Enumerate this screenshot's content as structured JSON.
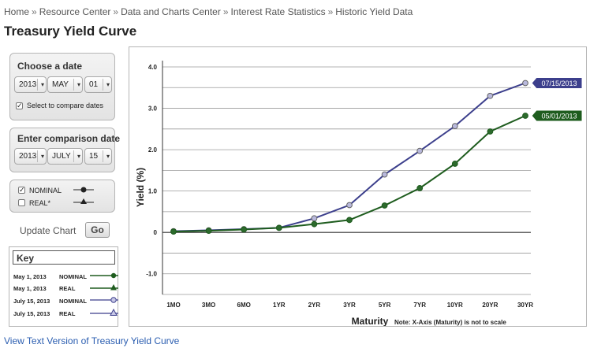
{
  "breadcrumb": {
    "items": [
      "Home",
      "Resource Center",
      "Data and Charts Center",
      "Interest Rate Statistics",
      "Historic Yield Data"
    ],
    "separator": "»"
  },
  "page_title": "Treasury Yield Curve",
  "choose_date": {
    "title": "Choose a date",
    "year": "2013",
    "month": "MAY",
    "day": "01",
    "compare_label": "Select to compare dates",
    "compare_checked": true
  },
  "comparison_date": {
    "title": "Enter comparison date",
    "year": "2013",
    "month": "JULY",
    "day": "15"
  },
  "series_toggle": {
    "nominal_label": "NOMINAL",
    "nominal_checked": true,
    "real_label": "REAL*",
    "real_checked": false
  },
  "update": {
    "label": "Update Chart",
    "go": "Go"
  },
  "key": {
    "title": "Key",
    "rows": [
      {
        "date": "May 1, 2013",
        "series": "NOMINAL",
        "marker": "circle-filled",
        "color": "#1e5c1e"
      },
      {
        "date": "May 1, 2013",
        "series": "REAL",
        "marker": "triangle-filled",
        "color": "#1e5c1e"
      },
      {
        "date": "July 15, 2013",
        "series": "NOMINAL",
        "marker": "circle-open",
        "color": "#3c3f8c"
      },
      {
        "date": "July 15, 2013",
        "series": "REAL",
        "marker": "triangle-open",
        "color": "#3c3f8c"
      }
    ]
  },
  "chart_data": {
    "type": "line",
    "categories": [
      "1MO",
      "3MO",
      "6MO",
      "1YR",
      "2YR",
      "3YR",
      "5YR",
      "7YR",
      "10YR",
      "20YR",
      "30YR"
    ],
    "series": [
      {
        "name": "07/15/2013",
        "color": "#3c3f8c",
        "fill": "#b8b8dc",
        "marker": "circle-open",
        "values": [
          0.03,
          0.05,
          0.08,
          0.11,
          0.34,
          0.66,
          1.4,
          1.97,
          2.57,
          3.3,
          3.61
        ]
      },
      {
        "name": "05/01/2013",
        "color": "#1e5c1e",
        "fill": "#2c6a2c",
        "marker": "circle-filled",
        "values": [
          0.02,
          0.04,
          0.07,
          0.11,
          0.2,
          0.3,
          0.65,
          1.07,
          1.66,
          2.44,
          2.82
        ]
      }
    ],
    "xlabel": "Maturity",
    "ylabel": "Yield (%)",
    "note": "Note: X-Axis (Maturity) is not to scale",
    "ylim": [
      -1.5,
      4.0
    ],
    "yticks": [
      "4.0",
      "3.0",
      "2.0",
      "1.0",
      "0",
      "-1.0"
    ],
    "ytick_values": [
      4,
      3,
      2,
      1,
      0,
      -1
    ],
    "grid": true
  },
  "bottom_link": "View Text Version of Treasury Yield Curve"
}
